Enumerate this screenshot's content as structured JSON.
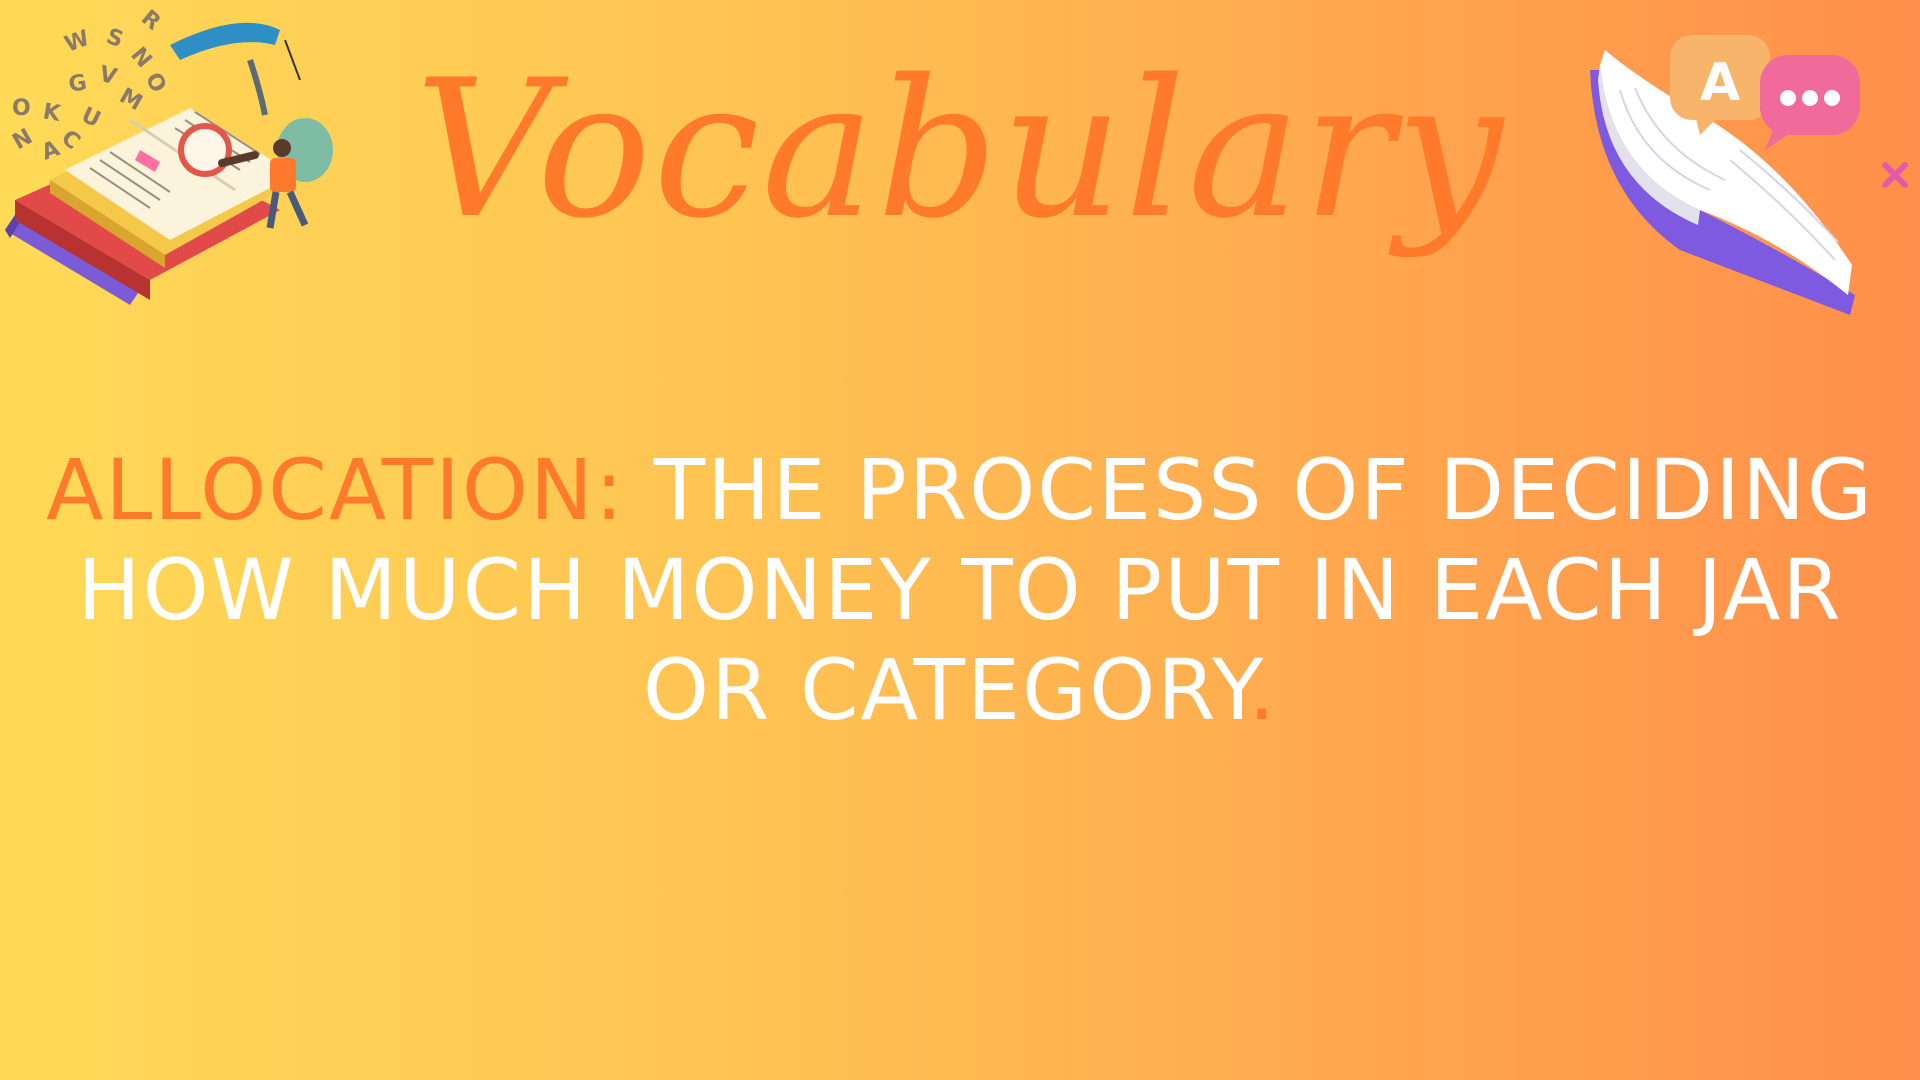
{
  "slide": {
    "title": "Vocabulary",
    "term": "ALLOCATION",
    "separator": ":",
    "definition": " THE PROCESS OF DECIDING HOW MUCH MONEY TO PUT IN EACH JAR OR CATEGORY",
    "end_mark": "."
  },
  "decorations": {
    "left": "books-reading-illustration",
    "right": "book-chat-bubbles-illustration"
  },
  "colors": {
    "accent": "#FF7A2A",
    "text": "#FFFFFF",
    "bg_start": "#FFDA58",
    "bg_end": "#FF8F4A"
  }
}
